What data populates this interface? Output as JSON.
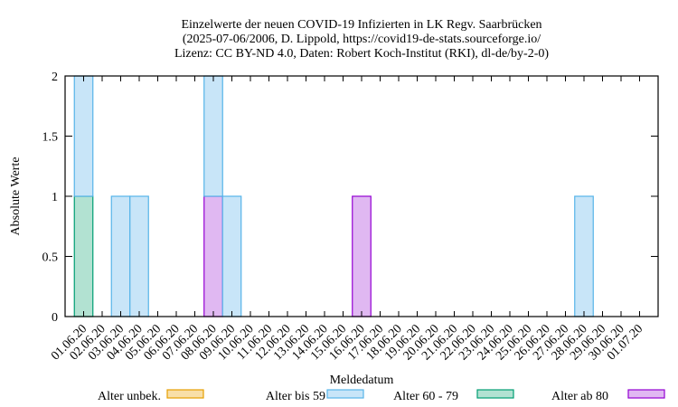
{
  "chart_data": {
    "type": "bar",
    "stacked": true,
    "title_lines": [
      "Einzelwerte der neuen COVID-19 Infizierten in LK Regv. Saarbrücken",
      "(2025-07-06/2006, D. Lippold, https://covid19-de-stats.sourceforge.io/",
      "Lizenz: CC BY-ND 4.0, Daten: Robert Koch-Institut (RKI), dl-de/by-2-0)"
    ],
    "xlabel": "Meldedatum",
    "ylabel": "Absolute Werte",
    "ylim": [
      0,
      2
    ],
    "yticks": [
      "0",
      "0.5",
      "1",
      "1.5",
      "2"
    ],
    "grid": false,
    "legend_placement": "bottom",
    "categories": [
      "01.06.20",
      "02.06.20",
      "03.06.20",
      "04.06.20",
      "05.06.20",
      "06.06.20",
      "07.06.20",
      "08.06.20",
      "09.06.20",
      "10.06.20",
      "11.06.20",
      "12.06.20",
      "13.06.20",
      "14.06.20",
      "15.06.20",
      "16.06.20",
      "17.06.20",
      "18.06.20",
      "19.06.20",
      "20.06.20",
      "21.06.20",
      "22.06.20",
      "23.06.20",
      "24.06.20",
      "25.06.20",
      "26.06.20",
      "27.06.20",
      "28.06.20",
      "29.06.20",
      "30.06.20",
      "01.07.20"
    ],
    "series": [
      {
        "name": "Alter unbek.",
        "fill": "#f8dfa8",
        "stroke": "#e69f00",
        "values": [
          0,
          0,
          0,
          0,
          0,
          0,
          0,
          0,
          0,
          0,
          0,
          0,
          0,
          0,
          0,
          0,
          0,
          0,
          0,
          0,
          0,
          0,
          0,
          0,
          0,
          0,
          0,
          0,
          0,
          0,
          0
        ]
      },
      {
        "name": "Alter 60 - 79",
        "fill": "#b2e2d2",
        "stroke": "#009e73",
        "values": [
          1,
          0,
          0,
          0,
          0,
          0,
          0,
          0,
          0,
          0,
          0,
          0,
          0,
          0,
          0,
          0,
          0,
          0,
          0,
          0,
          0,
          0,
          0,
          0,
          0,
          0,
          0,
          0,
          0,
          0,
          0
        ]
      },
      {
        "name": "Alter ab 80",
        "fill": "#e0b8f2",
        "stroke": "#9400d3",
        "values": [
          0,
          0,
          0,
          0,
          0,
          0,
          0,
          1,
          0,
          0,
          0,
          0,
          0,
          0,
          0,
          1,
          0,
          0,
          0,
          0,
          0,
          0,
          0,
          0,
          0,
          0,
          0,
          0,
          0,
          0,
          0
        ]
      },
      {
        "name": "Alter bis 59",
        "fill": "#c8e5f8",
        "stroke": "#56b4e9",
        "values": [
          1,
          0,
          1,
          1,
          0,
          0,
          0,
          1,
          1,
          0,
          0,
          0,
          0,
          0,
          0,
          0,
          0,
          0,
          0,
          0,
          0,
          0,
          0,
          0,
          0,
          0,
          0,
          1,
          0,
          0,
          0
        ]
      }
    ],
    "legend_order": [
      "Alter unbek.",
      "Alter bis 59",
      "Alter 60 - 79",
      "Alter ab 80"
    ]
  }
}
